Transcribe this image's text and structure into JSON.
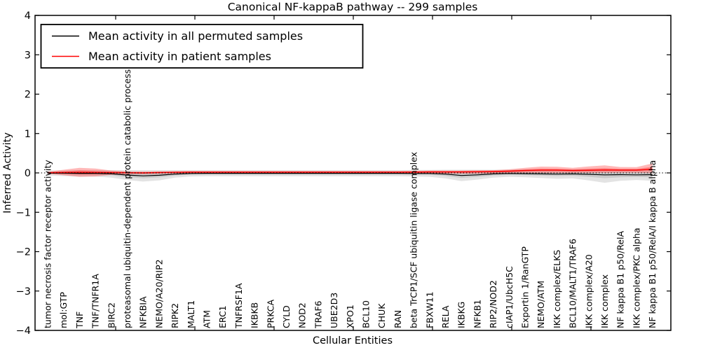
{
  "title": "Canonical NF-kappaB pathway -- 299 samples",
  "sample_count": "299",
  "axes": {
    "xlabel": "Cellular Entities",
    "ylabel": "Inferred Activity",
    "ytick_labels": [
      "4",
      "3",
      "2",
      "1",
      "0",
      "−1",
      "−2",
      "−3",
      "−4"
    ],
    "ytick_values": [
      4,
      3,
      2,
      1,
      0,
      -1,
      -2,
      -3,
      -4
    ],
    "ylim": [
      -4,
      4
    ]
  },
  "legend": {
    "entries": [
      {
        "label": "Mean activity in all permuted samples",
        "color": "#000000"
      },
      {
        "label": "Mean activity in patient samples",
        "color": "#ff0000"
      }
    ]
  },
  "chart_data": {
    "type": "line",
    "title": "Canonical NF-kappaB pathway -- 299 samples",
    "xlabel": "Cellular Entities",
    "ylabel": "Inferred Activity",
    "ylim": [
      -4,
      4
    ],
    "grid": false,
    "legend_position": "upper left",
    "zero_line": "dotted black",
    "categories": [
      "tumor necrosis factor receptor activity",
      "mol:GTP",
      "TNF",
      "TNF/TNFR1A",
      "BIRC2",
      "proteasomal ubiquitin-dependent protein catabolic process",
      "NFKBIA",
      "NEMO/A20/RIP2",
      "RIPK2",
      "MALT1",
      "ATM",
      "ERC1",
      "TNFRSF1A",
      "IKBKB",
      "PRKCA",
      "CYLD",
      "NOD2",
      "TRAF6",
      "UBE2D3",
      "XPO1",
      "BCL10",
      "CHUK",
      "RAN",
      "beta TrCP1/SCF ubiquitin ligase complex",
      "FBXW11",
      "RELA",
      "IKBKG",
      "NFKB1",
      "RIP2/NOD2",
      "cIAP1/UbcH5C",
      "Exportin 1/RanGTP",
      "NEMO/ATM",
      "IKK complex/ELKS",
      "BCL10/MALT1/TRAF6",
      "IKK complex/A20",
      "IKK complex",
      "NF kappa B1 p50/RelA",
      "IKK complex/PKC alpha",
      "NF kappa B1 p50/RelA/I kappa B alpha"
    ],
    "series": [
      {
        "name": "Mean activity in all permuted samples",
        "color": "#000000",
        "values": [
          -0.005,
          -0.005,
          -0.01,
          -0.01,
          -0.02,
          -0.055,
          -0.075,
          -0.06,
          -0.03,
          -0.015,
          -0.01,
          -0.01,
          -0.01,
          -0.01,
          -0.01,
          -0.01,
          -0.01,
          -0.01,
          -0.01,
          -0.01,
          -0.01,
          -0.01,
          -0.01,
          -0.015,
          -0.015,
          -0.03,
          -0.065,
          -0.05,
          -0.025,
          -0.015,
          -0.02,
          -0.025,
          -0.03,
          -0.025,
          -0.035,
          -0.05,
          -0.045,
          -0.05,
          -0.045
        ]
      },
      {
        "name": "Mean activity in patient samples",
        "color": "#ff0000",
        "values": [
          0.005,
          0.01,
          0.015,
          0.01,
          0.01,
          0.005,
          0.0,
          0.01,
          0.015,
          0.02,
          0.02,
          0.02,
          0.02,
          0.02,
          0.02,
          0.02,
          0.02,
          0.02,
          0.02,
          0.02,
          0.02,
          0.02,
          0.02,
          0.02,
          0.025,
          0.025,
          0.025,
          0.03,
          0.035,
          0.045,
          0.06,
          0.07,
          0.07,
          0.06,
          0.065,
          0.075,
          0.07,
          0.07,
          0.095
        ]
      }
    ],
    "bands": [
      {
        "series": "Mean activity in all permuted samples",
        "color": "rgba(0,0,0,0.11)",
        "lower": [
          -0.07,
          -0.08,
          -0.09,
          -0.09,
          -0.12,
          -0.18,
          -0.22,
          -0.19,
          -0.12,
          -0.09,
          -0.085,
          -0.085,
          -0.085,
          -0.085,
          -0.085,
          -0.085,
          -0.085,
          -0.085,
          -0.085,
          -0.085,
          -0.085,
          -0.085,
          -0.085,
          -0.09,
          -0.1,
          -0.14,
          -0.21,
          -0.17,
          -0.12,
          -0.1,
          -0.11,
          -0.13,
          -0.15,
          -0.14,
          -0.19,
          -0.25,
          -0.2,
          -0.18,
          -0.2
        ],
        "upper": [
          0.06,
          0.06,
          0.07,
          0.07,
          0.07,
          0.07,
          0.07,
          0.07,
          0.07,
          0.07,
          0.07,
          0.07,
          0.07,
          0.07,
          0.07,
          0.07,
          0.07,
          0.07,
          0.07,
          0.07,
          0.07,
          0.07,
          0.07,
          0.075,
          0.075,
          0.08,
          0.08,
          0.08,
          0.08,
          0.08,
          0.085,
          0.085,
          0.085,
          0.085,
          0.09,
          0.09,
          0.09,
          0.09,
          0.09
        ]
      },
      {
        "series": "Mean activity in patient samples",
        "color": "rgba(255,0,0,0.28)",
        "lower": [
          -0.02,
          -0.06,
          -0.1,
          -0.09,
          -0.05,
          -0.03,
          -0.03,
          -0.025,
          -0.02,
          -0.015,
          -0.015,
          -0.015,
          -0.015,
          -0.015,
          -0.015,
          -0.015,
          -0.015,
          -0.015,
          -0.015,
          -0.015,
          -0.015,
          -0.015,
          -0.015,
          -0.02,
          -0.02,
          -0.02,
          -0.02,
          -0.02,
          -0.015,
          -0.01,
          0.0,
          0.0,
          -0.005,
          0.0,
          0.0,
          0.0,
          0.005,
          0.005,
          -0.01
        ],
        "upper": [
          0.03,
          0.08,
          0.13,
          0.11,
          0.06,
          0.04,
          0.035,
          0.04,
          0.045,
          0.05,
          0.05,
          0.05,
          0.05,
          0.05,
          0.05,
          0.05,
          0.05,
          0.05,
          0.05,
          0.05,
          0.05,
          0.05,
          0.05,
          0.055,
          0.06,
          0.06,
          0.06,
          0.065,
          0.07,
          0.09,
          0.13,
          0.16,
          0.155,
          0.13,
          0.165,
          0.19,
          0.15,
          0.145,
          0.24
        ]
      }
    ]
  },
  "colors": {
    "permuted_line": "#000000",
    "patient_line": "#ff0000",
    "permuted_band": "rgba(0,0,0,0.11)",
    "patient_band": "rgba(255,0,0,0.28)",
    "axis": "#000000",
    "background": "#ffffff"
  }
}
